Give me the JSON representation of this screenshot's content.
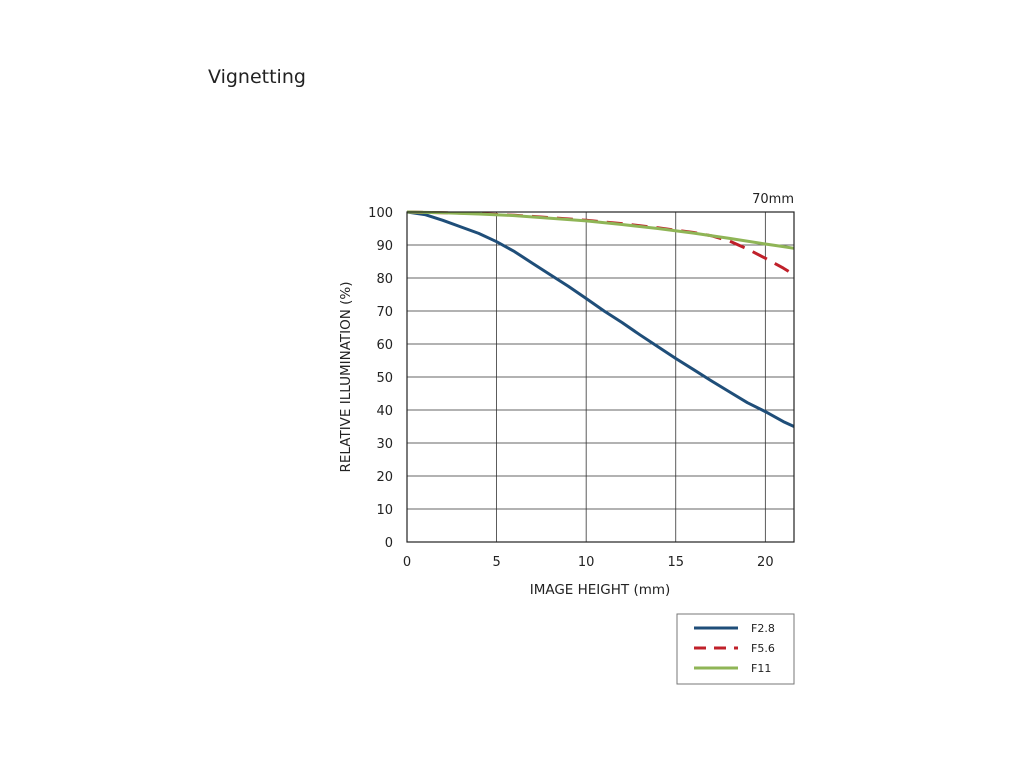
{
  "page": {
    "title": "Vignetting"
  },
  "chart_data": {
    "type": "line",
    "title": "",
    "annotation": "70mm",
    "xlabel": "IMAGE HEIGHT (mm)",
    "ylabel": "RELATIVE ILLUMINATION (%)",
    "xlim": [
      0,
      21.6
    ],
    "ylim": [
      0,
      100
    ],
    "xticks": [
      0,
      5,
      10,
      15,
      20
    ],
    "yticks": [
      0,
      10,
      20,
      30,
      40,
      50,
      60,
      70,
      80,
      90,
      100
    ],
    "grid": true,
    "legend_position": "below-right",
    "series": [
      {
        "name": "F2.8",
        "color": "#1f4e79",
        "dash": "solid",
        "x": [
          0,
          1,
          2,
          3,
          4,
          5,
          6,
          7,
          8,
          9,
          10,
          11,
          12,
          13,
          14,
          15,
          16,
          17,
          18,
          19,
          20,
          21,
          21.6
        ],
        "y": [
          100,
          99.2,
          97.5,
          95.5,
          93.5,
          91,
          88,
          84.5,
          81,
          77.5,
          73.8,
          70,
          66.5,
          62.8,
          59.2,
          55.6,
          52.2,
          48.8,
          45.5,
          42.2,
          39.5,
          36.5,
          35
        ]
      },
      {
        "name": "F5.6",
        "color": "#c0202a",
        "dash": "dashed",
        "x": [
          0,
          2,
          4,
          6,
          8,
          10,
          12,
          14,
          16,
          17,
          18,
          19,
          20,
          21,
          21.6
        ],
        "y": [
          100,
          99.8,
          99.5,
          99,
          98.3,
          97.5,
          96.5,
          95.2,
          93.8,
          92.8,
          91.2,
          88.8,
          86,
          83,
          81
        ]
      },
      {
        "name": "F11",
        "color": "#8fb556",
        "dash": "solid",
        "x": [
          0,
          2,
          4,
          6,
          8,
          10,
          12,
          14,
          16,
          18,
          20,
          21,
          21.6
        ],
        "y": [
          100,
          99.8,
          99.4,
          98.9,
          98.1,
          97.3,
          96.2,
          95,
          93.6,
          92,
          90.3,
          89.5,
          89
        ]
      }
    ]
  }
}
